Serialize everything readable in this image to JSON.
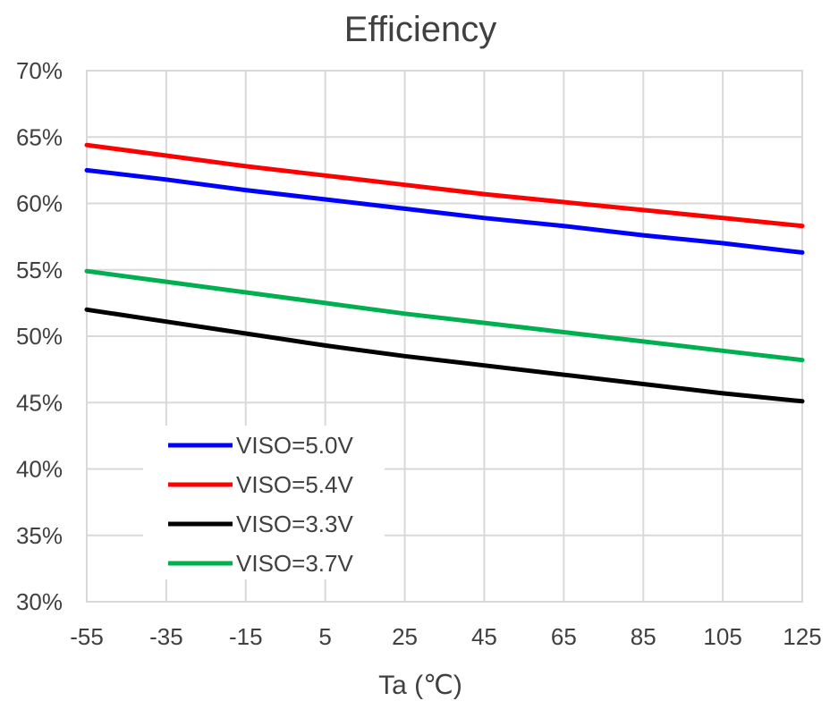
{
  "chart_data": {
    "type": "line",
    "title": "Efficiency",
    "xlabel": "Ta (℃)",
    "ylabel": "",
    "x": [
      -55,
      -35,
      -15,
      5,
      25,
      45,
      65,
      85,
      105,
      125
    ],
    "x_ticks": [
      "-55",
      "-35",
      "-15",
      "5",
      "25",
      "45",
      "65",
      "85",
      "105",
      "125"
    ],
    "xlim": [
      -55,
      125
    ],
    "ylim": [
      30,
      70
    ],
    "y_ticks": [
      "30%",
      "35%",
      "40%",
      "45%",
      "50%",
      "55%",
      "60%",
      "65%",
      "70%"
    ],
    "y_tick_values": [
      30,
      35,
      40,
      45,
      50,
      55,
      60,
      65,
      70
    ],
    "grid": true,
    "legend_position": "bottom-left",
    "series": [
      {
        "name": "VISO=5.0V",
        "color": "#0000ff",
        "values": [
          62.5,
          61.8,
          61.0,
          60.3,
          59.6,
          58.9,
          58.3,
          57.6,
          57.0,
          56.3
        ]
      },
      {
        "name": "VISO=5.4V",
        "color": "#ff0000",
        "values": [
          64.4,
          63.6,
          62.8,
          62.1,
          61.4,
          60.7,
          60.1,
          59.5,
          58.9,
          58.3
        ]
      },
      {
        "name": "VISO=3.3V",
        "color": "#000000",
        "values": [
          52.0,
          51.1,
          50.2,
          49.3,
          48.5,
          47.8,
          47.1,
          46.4,
          45.7,
          45.1
        ]
      },
      {
        "name": "VISO=3.7V",
        "color": "#00b050",
        "values": [
          54.9,
          54.1,
          53.3,
          52.5,
          51.7,
          51.0,
          50.3,
          49.6,
          48.9,
          48.2
        ]
      }
    ]
  }
}
